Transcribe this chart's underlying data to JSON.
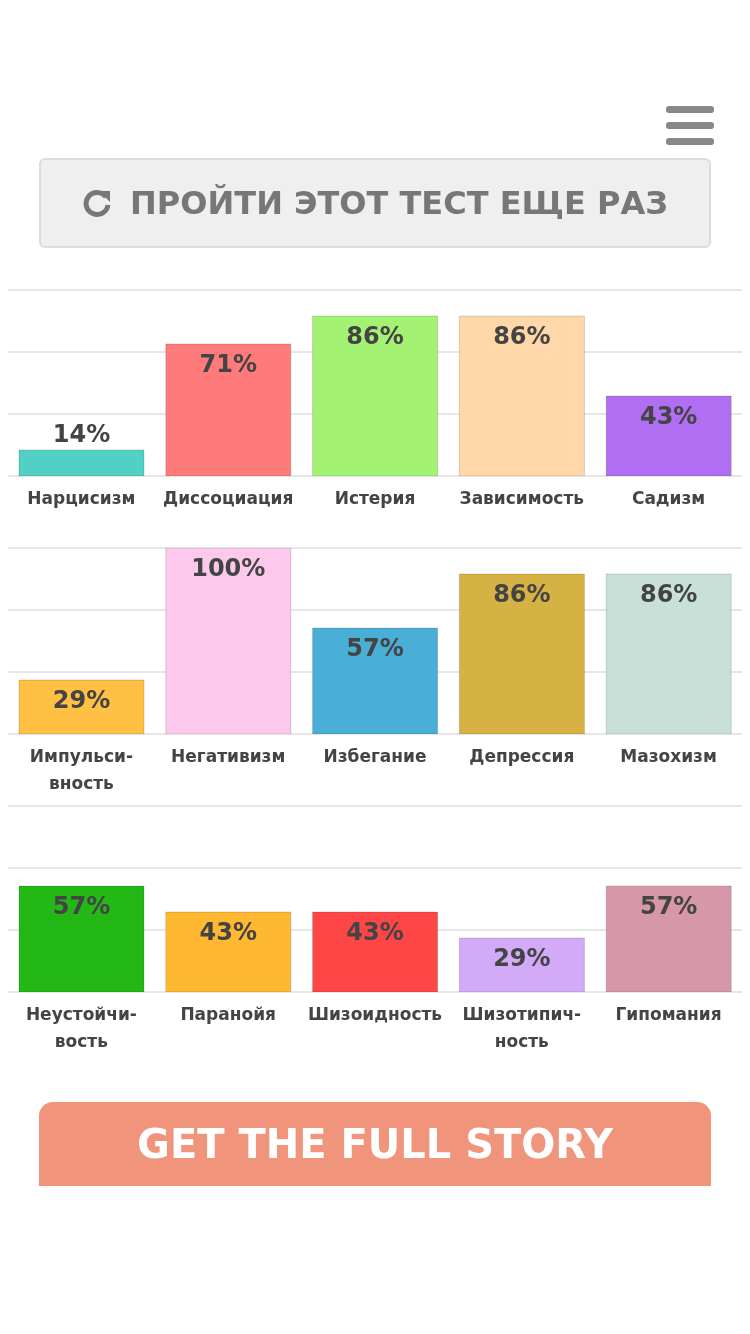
{
  "chart_data": [
    {
      "type": "bar",
      "annotations": [
        "ПРОЙТИ ЭТОТ ТЕСТ ЕЩЕ РАЗ"
      ],
      "categories": [
        "Нарцисизм",
        "Диссоциация",
        "Истерия",
        "Зависимость",
        "Садизм"
      ],
      "values": [
        14,
        71,
        86,
        86,
        43
      ],
      "value_labels": [
        "14%",
        "71%",
        "86%",
        "86%",
        "43%"
      ],
      "colors": [
        "#52d0c6",
        "#ff7a7a",
        "#a4f274",
        "#ffd7a8",
        "#b06ef2"
      ],
      "ylim": [
        0,
        100
      ],
      "yticks": [
        {
          "value": 0,
          "label": null
        },
        {
          "value": 33.3,
          "label": null
        },
        {
          "value": 66.7,
          "label": null
        },
        {
          "value": 100,
          "label": null
        }
      ],
      "grid": "y",
      "tick_labels": "x"
    },
    {
      "type": "bar",
      "categories": [
        "Импульси-\nвность",
        "Негативизм",
        "Избегание",
        "Депрессия",
        "Мазохизм"
      ],
      "values": [
        29,
        100,
        57,
        86,
        86
      ],
      "value_labels": [
        "29%",
        "100%",
        "57%",
        "86%",
        "86%"
      ],
      "colors": [
        "#ffc044",
        "#fcc8ec",
        "#4aafd6",
        "#d6b244",
        "#c8e0d8"
      ],
      "ylim": [
        0,
        100
      ],
      "yticks": [
        {
          "value": 0,
          "label": null
        },
        {
          "value": 33.3,
          "label": null
        },
        {
          "value": 66.7,
          "label": null
        },
        {
          "value": 100,
          "label": null
        }
      ],
      "grid": "y",
      "tick_labels": "x"
    },
    {
      "type": "bar",
      "annotations": [
        "GET THE FULL STORY"
      ],
      "categories": [
        "Неустойчи-\nвость",
        "Паранойя",
        "Шизоидность",
        "Шизотипич-\nность",
        "Гипомания"
      ],
      "values": [
        57,
        43,
        43,
        29,
        57
      ],
      "value_labels": [
        "57%",
        "43%",
        "43%",
        "29%",
        "57%"
      ],
      "colors": [
        "#24b816",
        "#ffb832",
        "#ff4646",
        "#d2aaf8",
        "#d698a8"
      ],
      "ylim": [
        0,
        100
      ],
      "yticks": [
        {
          "value": 0,
          "label": null
        },
        {
          "value": 33.3,
          "label": null
        },
        {
          "value": 66.7,
          "label": null
        },
        {
          "value": 100,
          "label": null
        }
      ],
      "grid": "y",
      "tick_labels": "x"
    }
  ]
}
